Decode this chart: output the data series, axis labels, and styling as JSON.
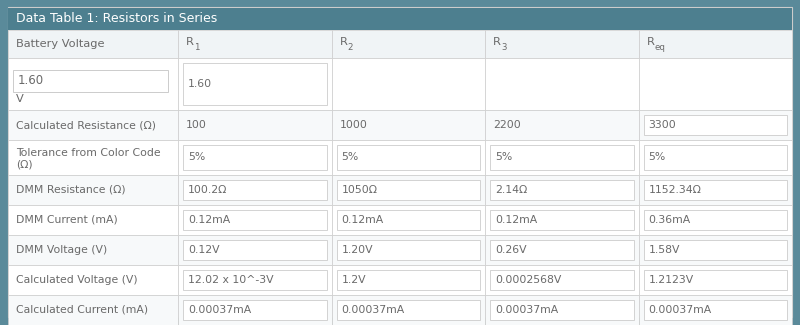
{
  "title": "Data Table 1: Resistors in Series",
  "title_bg": "#4d7f8f",
  "title_color": "#ffffff",
  "table_bg": "#ffffff",
  "outer_bg": "#5a8a9a",
  "label_text_color": "#6a6a6a",
  "value_text_color": "#6a6a6a",
  "border_color": "#cccccc",
  "input_box_color": "#f5f5f5",
  "input_box_border": "#cccccc",
  "header_bg": "#f0f4f6",
  "col_headers": [
    "Battery Voltage",
    "R",
    "R",
    "R",
    "R"
  ],
  "col_header_subs": [
    "",
    "1",
    "2",
    "3",
    "eq"
  ],
  "rows": [
    {
      "label": "Battery Voltage",
      "label2": "",
      "values": [
        "1.60",
        "",
        "",
        ""
      ],
      "values2": [
        "V",
        "",
        "",
        ""
      ],
      "has_input_box": [
        true,
        false,
        false,
        false
      ],
      "show_label_in_header": true
    },
    {
      "label": "Calculated Resistance (Ω)",
      "label2": "",
      "values": [
        "100",
        "1000",
        "2200",
        "3300"
      ],
      "values2": [
        "",
        "",
        "",
        ""
      ],
      "has_input_box": [
        false,
        false,
        false,
        true
      ]
    },
    {
      "label": "Tolerance from Color Code",
      "label2": "(Ω)",
      "values": [
        "5%",
        "5%",
        "5%",
        "5%"
      ],
      "values2": [
        "",
        "",
        "",
        ""
      ],
      "has_input_box": [
        true,
        true,
        true,
        true
      ]
    },
    {
      "label": "DMM Resistance (Ω)",
      "label2": "",
      "values": [
        "100.2Ω",
        "1050Ω",
        "2.14Ω",
        "1152.34Ω"
      ],
      "values2": [
        "",
        "",
        "",
        ""
      ],
      "has_input_box": [
        true,
        true,
        true,
        true
      ]
    },
    {
      "label": "DMM Current (mA)",
      "label2": "",
      "values": [
        "0.12mA",
        "0.12mA",
        "0.12mA",
        "0.36mA"
      ],
      "values2": [
        "",
        "",
        "",
        ""
      ],
      "has_input_box": [
        true,
        true,
        true,
        true
      ]
    },
    {
      "label": "DMM Voltage (V)",
      "label2": "",
      "values": [
        "0.12V",
        "1.20V",
        "0.26V",
        "1.58V"
      ],
      "values2": [
        "",
        "",
        "",
        ""
      ],
      "has_input_box": [
        true,
        true,
        true,
        true
      ]
    },
    {
      "label": "Calculated Voltage (V)",
      "label2": "",
      "values": [
        "12.02 x 10^-3V",
        "1.2V",
        "0.0002568V",
        "1.2123V"
      ],
      "values2": [
        "",
        "",
        "",
        ""
      ],
      "has_input_box": [
        true,
        true,
        true,
        true
      ]
    },
    {
      "label": "Calculated Current (mA)",
      "label2": "",
      "values": [
        "0.00037mA",
        "0.00037mA",
        "0.00037mA",
        "0.00037mA"
      ],
      "values2": [
        "",
        "",
        "",
        ""
      ],
      "has_input_box": [
        true,
        true,
        true,
        true
      ]
    }
  ],
  "figsize": [
    8.0,
    3.25
  ],
  "dpi": 100
}
